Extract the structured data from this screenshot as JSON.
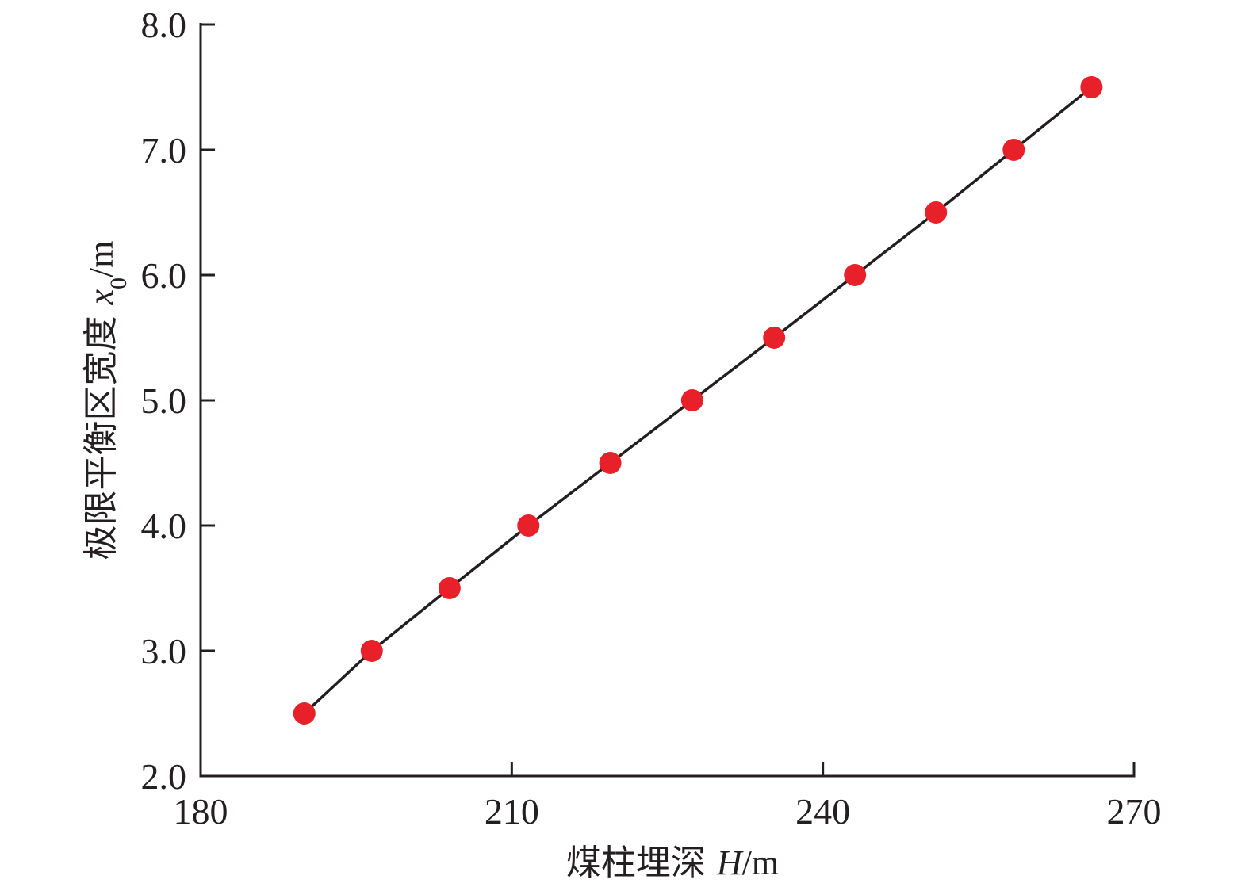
{
  "chart_data": {
    "type": "line",
    "xlabel": {
      "prefix": "煤柱埋深 ",
      "symbol": "H",
      "unit": "/m"
    },
    "ylabel": {
      "prefix": "极限平衡区宽度 ",
      "symbol": "x",
      "subscript": "0",
      "unit": "/m"
    },
    "xlim": [
      180,
      270
    ],
    "ylim": [
      2.0,
      8.0
    ],
    "x_ticks": [
      "180",
      "210",
      "240",
      "270"
    ],
    "y_ticks": [
      "2.0",
      "3.0",
      "4.0",
      "5.0",
      "6.0",
      "7.0",
      "8.0"
    ],
    "grid": false,
    "legend": "none",
    "series": [
      {
        "line_color": "#231f20",
        "marker_color": "#e8202a",
        "x": [
          190,
          196.5,
          204,
          211.6,
          219.5,
          227.4,
          235.3,
          243.1,
          250.9,
          258.4,
          265.9
        ],
        "y": [
          2.5,
          3.0,
          3.5,
          4.0,
          4.5,
          5.0,
          5.5,
          6.0,
          6.5,
          7.0,
          7.5
        ]
      }
    ]
  }
}
